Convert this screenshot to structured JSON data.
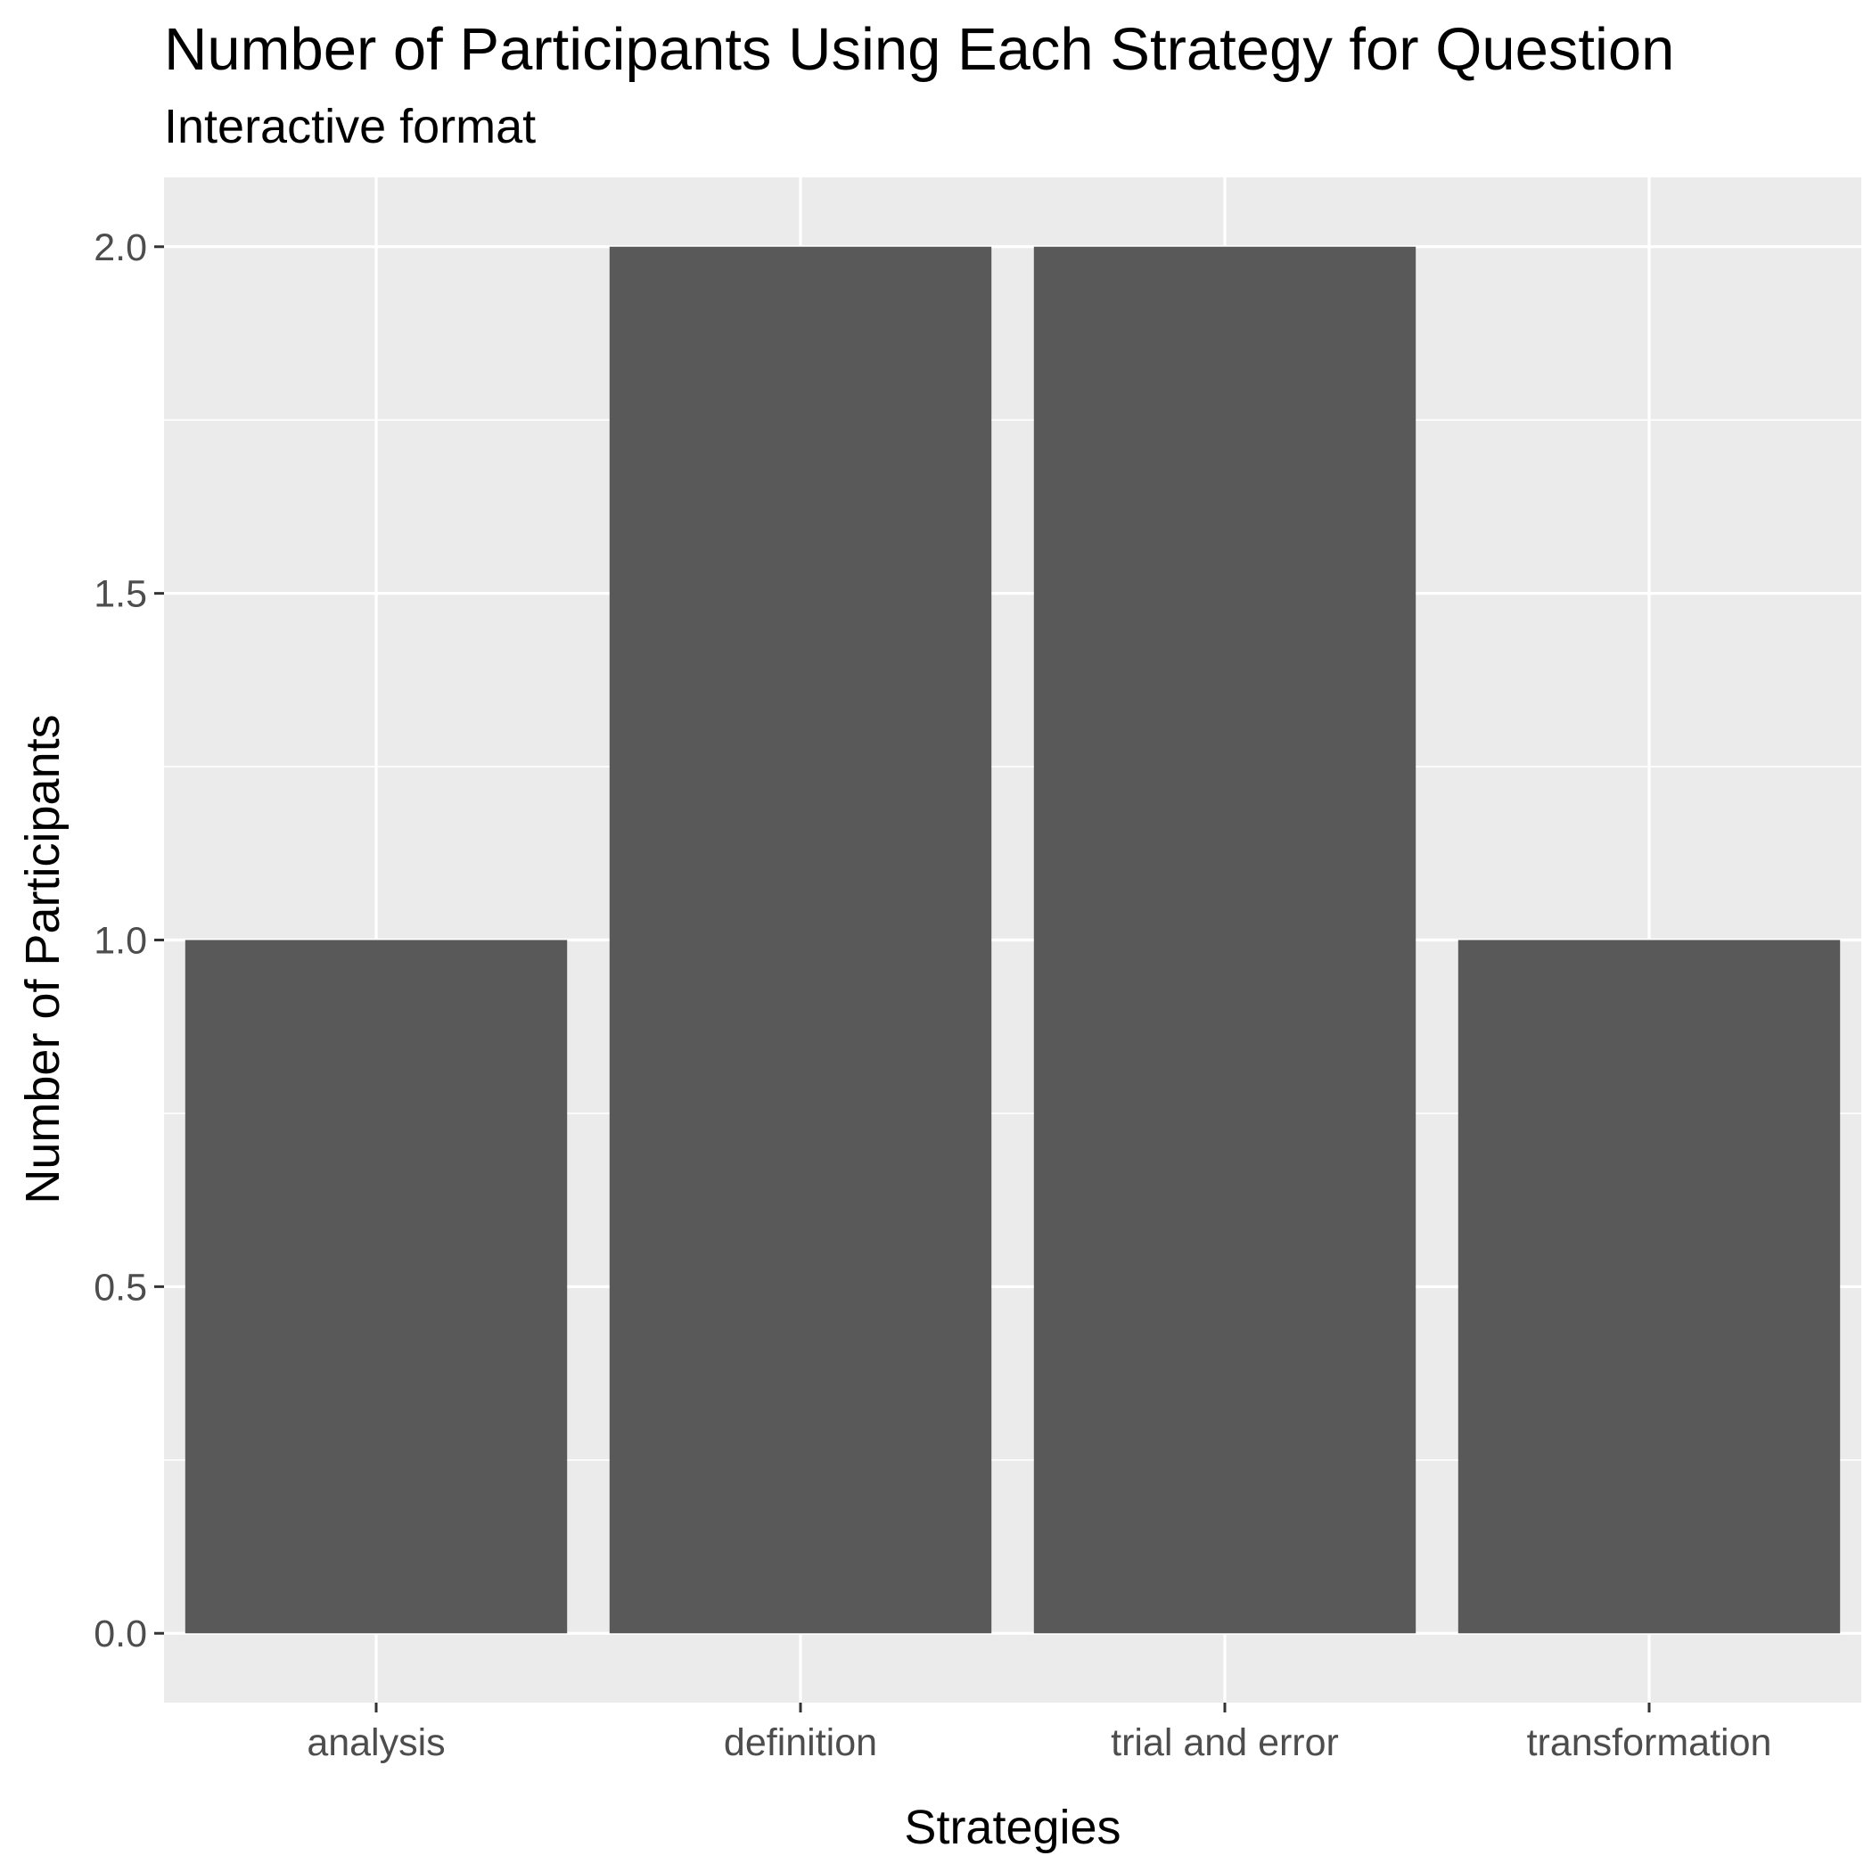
{
  "chart_data": {
    "type": "bar",
    "title": "Number of Participants Using Each Strategy for Question",
    "subtitle": "Interactive format",
    "xlabel": "Strategies",
    "ylabel": "Number of Participants",
    "categories": [
      "analysis",
      "definition",
      "trial and error",
      "transformation"
    ],
    "values": [
      1,
      2,
      2,
      1
    ],
    "ylim": [
      -0.1,
      2.1
    ],
    "yticks": [
      "0.0",
      "0.5",
      "1.0",
      "1.5",
      "2.0"
    ],
    "grid": true,
    "colors": {
      "panel_background": "#ebebeb",
      "gridline": "#ffffff",
      "bar_fill": "#595959",
      "tick_mark": "#333333"
    }
  }
}
